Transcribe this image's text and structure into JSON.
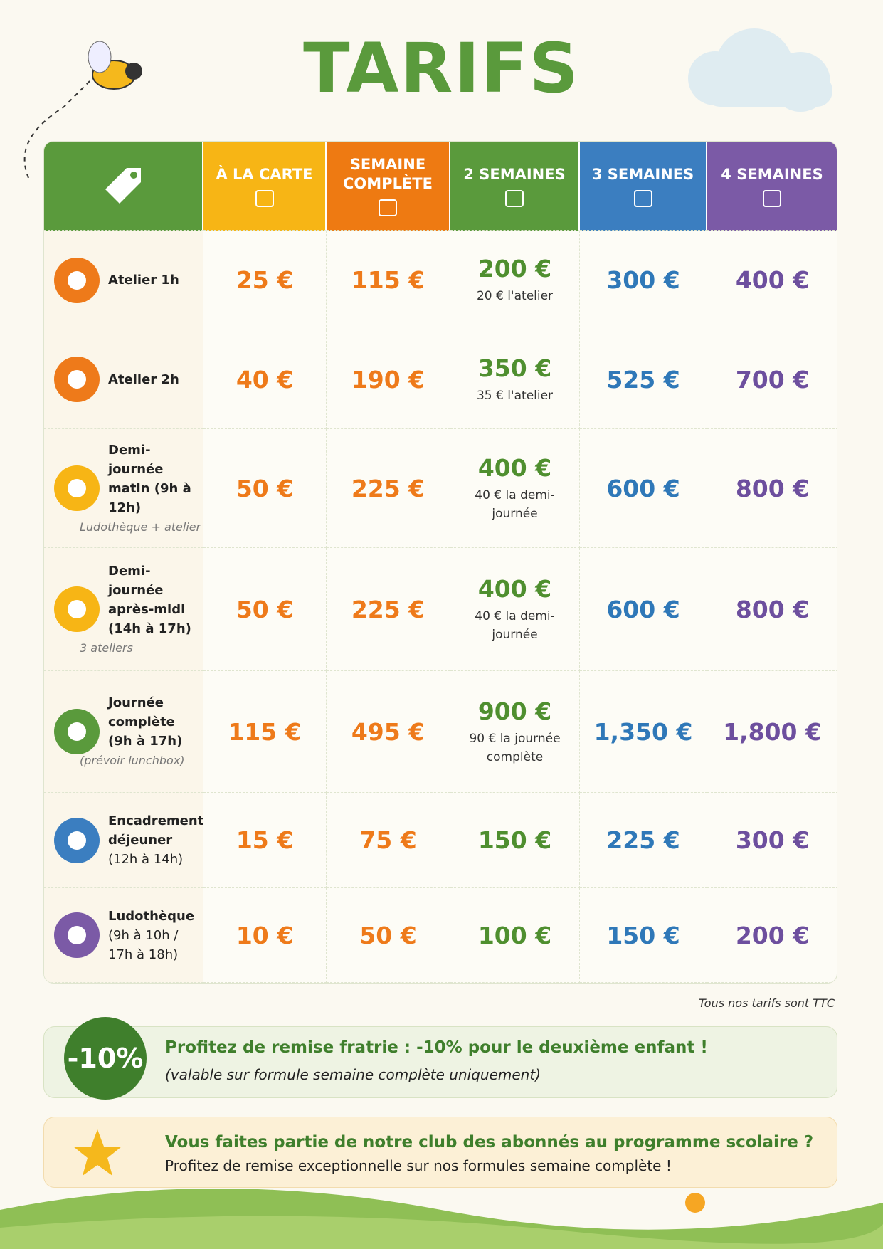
{
  "header": {
    "title": "TARIFS"
  },
  "table": {
    "columns": [
      "À LA CARTE",
      "SEMAINE COMPLÈTE",
      "2 SEMAINES",
      "3 SEMAINES",
      "4 SEMAINES"
    ],
    "rows": [
      {
        "label": "Atelier 1h",
        "prices": [
          "25 €",
          "115 €",
          "200 €",
          "300 €",
          "400 €"
        ],
        "detail": "20 € l'atelier"
      },
      {
        "label": "Atelier 2h",
        "prices": [
          "40 €",
          "190 €",
          "350 €",
          "525 €",
          "700 €"
        ],
        "detail": "35 € l'atelier"
      },
      {
        "label": "Demi-journée matin (9h à 12h)",
        "note": "Ludothèque + atelier",
        "prices": [
          "50 €",
          "225 €",
          "400 €",
          "600 €",
          "800 €"
        ],
        "detail": "40 € la demi-journée"
      },
      {
        "label": "Demi-journée après-midi (14h à 17h)",
        "note": "3 ateliers",
        "prices": [
          "50 €",
          "225 €",
          "400 €",
          "600 €",
          "800 €"
        ],
        "detail": "40 € la demi-journée"
      },
      {
        "label": "Journée complète (9h à 17h)",
        "note": "(prévoir lunchbox)",
        "prices": [
          "115 €",
          "495 €",
          "900 €",
          "1,350 €",
          "1,800 €"
        ],
        "detail": "90 € la journée complète"
      },
      {
        "label": "Encadrement déjeuner",
        "sub": "(12h à 14h)",
        "prices": [
          "15 €",
          "75 €",
          "150 €",
          "225 €",
          "300 €"
        ]
      },
      {
        "label": "Ludothèque",
        "sub": "(9h à 10h / 17h à 18h)",
        "prices": [
          "10 €",
          "50 €",
          "100 €",
          "150 €",
          "200 €"
        ]
      }
    ]
  },
  "footnote": "Tous nos tarifs sont TTC",
  "promo": {
    "badge": "-10%",
    "title": "Profitez de remise fratrie : -10% pour le deuxième enfant !",
    "subtitle": "(valable sur formule semaine complète uniquement)"
  },
  "club": {
    "title": "Vous faites partie de notre club des abonnés au programme scolaire ?",
    "text": "Profitez de remise exceptionnelle sur nos formules semaine complète !"
  }
}
